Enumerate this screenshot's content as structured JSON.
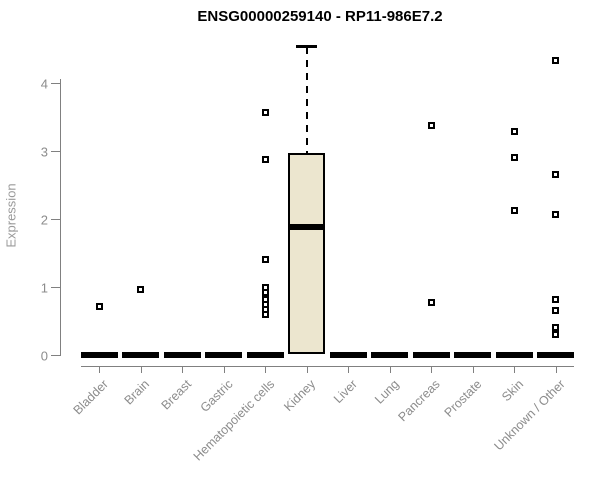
{
  "chart_data": {
    "type": "boxplot",
    "title": "ENSG00000259140 - RP11-986E7.2",
    "ylabel": "Expression",
    "xlabel": "",
    "yticks": [
      0,
      1,
      2,
      3,
      4
    ],
    "ylim": [
      0,
      4.6
    ],
    "grid": false,
    "legend": "none",
    "categories": [
      "Bladder",
      "Brain",
      "Breast",
      "Gastric",
      "Hematopoietic cells",
      "Kidney",
      "Liver",
      "Lung",
      "Pancreas",
      "Prostate",
      "Skin",
      "Unknown / Other"
    ],
    "boxes": [
      {
        "category": "Bladder",
        "q1": 0,
        "median": 0,
        "q3": 0,
        "whisker_low": 0,
        "whisker_high": 0,
        "outliers": [
          0.71
        ]
      },
      {
        "category": "Brain",
        "q1": 0,
        "median": 0,
        "q3": 0,
        "whisker_low": 0,
        "whisker_high": 0,
        "outliers": [
          0.96
        ]
      },
      {
        "category": "Breast",
        "q1": 0,
        "median": 0,
        "q3": 0,
        "whisker_low": 0,
        "whisker_high": 0,
        "outliers": []
      },
      {
        "category": "Gastric",
        "q1": 0,
        "median": 0,
        "q3": 0,
        "whisker_low": 0,
        "whisker_high": 0,
        "outliers": []
      },
      {
        "category": "Hematopoietic cells",
        "q1": 0,
        "median": 0,
        "q3": 0,
        "whisker_low": 0,
        "whisker_high": 0,
        "outliers": [
          3.56,
          2.88,
          1.4,
          0.99,
          0.92,
          0.81,
          0.74,
          0.67,
          0.6
        ]
      },
      {
        "category": "Kidney",
        "q1": 0.01,
        "median": 1.88,
        "q3": 2.97,
        "whisker_low": 0.01,
        "whisker_high": 4.53,
        "outliers": []
      },
      {
        "category": "Liver",
        "q1": 0,
        "median": 0,
        "q3": 0,
        "whisker_low": 0,
        "whisker_high": 0,
        "outliers": []
      },
      {
        "category": "Lung",
        "q1": 0,
        "median": 0,
        "q3": 0,
        "whisker_low": 0,
        "whisker_high": 0,
        "outliers": []
      },
      {
        "category": "Pancreas",
        "q1": 0,
        "median": 0,
        "q3": 0,
        "whisker_low": 0,
        "whisker_high": 0,
        "outliers": [
          3.37,
          0.77
        ]
      },
      {
        "category": "Prostate",
        "q1": 0,
        "median": 0,
        "q3": 0,
        "whisker_low": 0,
        "whisker_high": 0,
        "outliers": []
      },
      {
        "category": "Skin",
        "q1": 0,
        "median": 0,
        "q3": 0,
        "whisker_low": 0,
        "whisker_high": 0,
        "outliers": [
          3.28,
          2.9,
          2.13
        ]
      },
      {
        "category": "Unknown / Other",
        "q1": 0,
        "median": 0,
        "q3": 0,
        "whisker_low": 0,
        "whisker_high": 0,
        "outliers": [
          4.33,
          2.65,
          2.06,
          0.81,
          0.66,
          0.4,
          0.3
        ]
      }
    ],
    "style": {
      "box_fill": "#ece6cf",
      "box_border": "#000000",
      "median_color": "#000000",
      "outlier_color": "#000000",
      "axis_color": "#808080",
      "tick_label_color": "#8c8c8c",
      "title_color": "#000000"
    }
  }
}
